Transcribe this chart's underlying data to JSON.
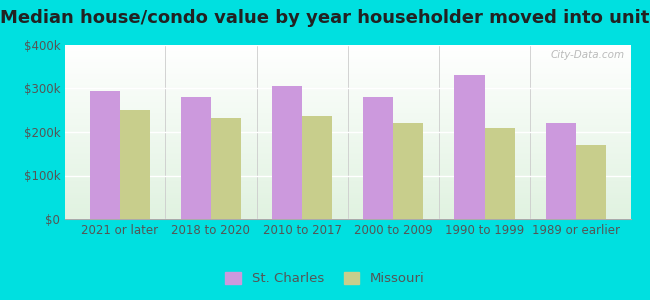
{
  "title": "Median house/condo value by year householder moved into unit",
  "categories": [
    "2021 or later",
    "2018 to 2020",
    "2010 to 2017",
    "2000 to 2009",
    "1990 to 1999",
    "1989 or earlier"
  ],
  "st_charles": [
    295000,
    280000,
    305000,
    280000,
    330000,
    220000
  ],
  "missouri": [
    250000,
    232000,
    237000,
    220000,
    210000,
    170000
  ],
  "bar_color_stcharles": "#cc99dd",
  "bar_color_missouri": "#c8ce8c",
  "background_color": "#00e0e0",
  "ylim": [
    0,
    400000
  ],
  "yticks": [
    0,
    100000,
    200000,
    300000,
    400000
  ],
  "ytick_labels": [
    "$0",
    "$100k",
    "$200k",
    "$300k",
    "$400k"
  ],
  "legend_stcharles": "St. Charles",
  "legend_missouri": "Missouri",
  "title_fontsize": 13,
  "tick_fontsize": 8.5,
  "legend_fontsize": 9.5,
  "watermark": "City-Data.com"
}
